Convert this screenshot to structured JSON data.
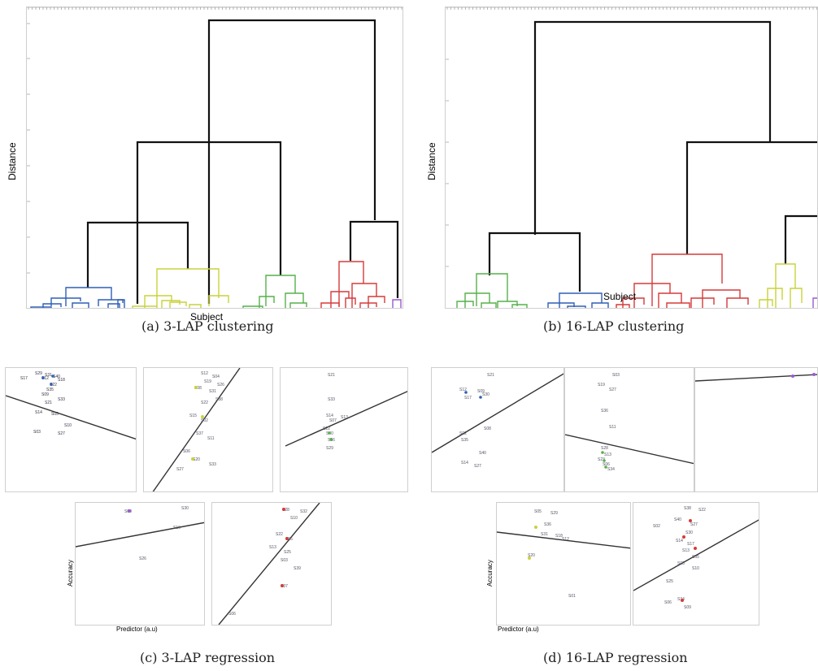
{
  "figure": {
    "panel_a": {
      "caption": "(a) 3-LAP clustering",
      "ylabel": "Distance",
      "xlabel": "Subject",
      "cluster_colors": [
        "#2f5fb5",
        "#c9d23a",
        "#55b04a",
        "#d63a3a",
        "#9a5ad0"
      ]
    },
    "panel_b": {
      "caption": "(b) 16-LAP clustering",
      "ylabel": "Distance",
      "xlabel": "Subject",
      "cluster_colors": [
        "#55b04a",
        "#2f5fb5",
        "#d63a3a",
        "#c9d23a"
      ]
    },
    "panel_c": {
      "caption": "(c) 3-LAP regression",
      "ylabel": "Accuracy",
      "xlabel": "Predictor (a.u)"
    },
    "panel_d": {
      "caption": "(d) 16-LAP regression",
      "ylabel": "Accuracy",
      "xlabel": "Predictor (a.u)"
    }
  }
}
